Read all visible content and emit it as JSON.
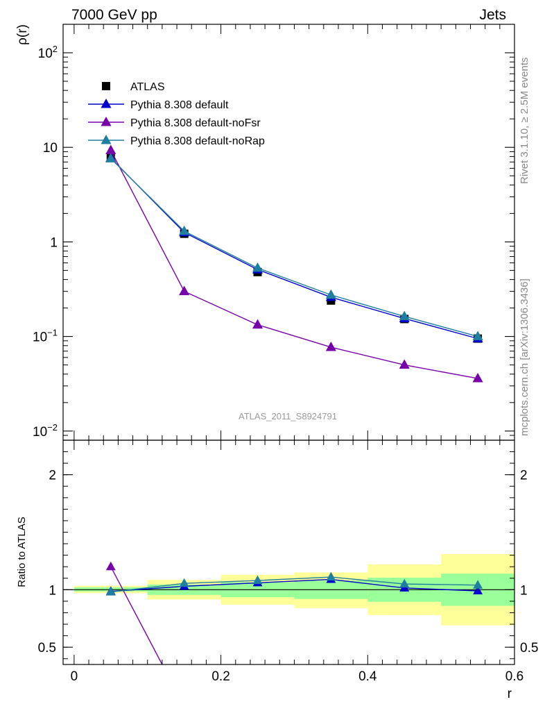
{
  "header": {
    "left": "7000 GeV pp",
    "right": "Jets"
  },
  "side_text": {
    "rivet": "Rivet 3.1.10, ≥ 2.5M events",
    "mcplots": "mcplots.cern.ch [arXiv:1306.3436]"
  },
  "watermark": "ATLAS_2011_S8924791",
  "colors": {
    "atlas": "#000000",
    "default": "#0000cc",
    "noFsr": "#7700aa",
    "noRap": "#1f7fa0",
    "band_inner": "#99ff99",
    "band_outer": "#ffff99"
  },
  "chart_data": [
    {
      "type": "line",
      "panel": "main",
      "ylabel": "ρ(r)",
      "yscale": "log",
      "ylim": [
        0.008,
        200
      ],
      "xlim": [
        -0.015,
        0.6
      ],
      "y_ticks": [
        {
          "value": 100,
          "base": "10",
          "exp": "2"
        },
        {
          "value": 10,
          "base": "10",
          "exp": ""
        },
        {
          "value": 1,
          "base": "1",
          "exp": ""
        },
        {
          "value": 0.1,
          "base": "10",
          "exp": "−1"
        },
        {
          "value": 0.01,
          "base": "10",
          "exp": "−2"
        }
      ],
      "legend_position": "top-left",
      "series": [
        {
          "name": "ATLAS",
          "key": "atlas",
          "marker": "square",
          "x": [
            0.05,
            0.15,
            0.25,
            0.35,
            0.45,
            0.55
          ],
          "y": [
            7.8,
            1.22,
            0.48,
            0.24,
            0.153,
            0.095
          ]
        },
        {
          "name": "Pythia 8.308 default",
          "key": "default",
          "marker": "triangle",
          "x": [
            0.05,
            0.15,
            0.25,
            0.35,
            0.45,
            0.55
          ],
          "y": [
            7.7,
            1.26,
            0.51,
            0.26,
            0.155,
            0.095
          ]
        },
        {
          "name": "Pythia 8.308 default-noFsr",
          "key": "noFsr",
          "marker": "triangle",
          "x": [
            0.05,
            0.15,
            0.25,
            0.35,
            0.45,
            0.55
          ],
          "y": [
            9.3,
            0.3,
            0.133,
            0.077,
            0.05,
            0.036
          ]
        },
        {
          "name": "Pythia 8.308 default-noRap",
          "key": "noRap",
          "marker": "triangle",
          "x": [
            0.05,
            0.15,
            0.25,
            0.35,
            0.45,
            0.55
          ],
          "y": [
            7.6,
            1.3,
            0.53,
            0.275,
            0.163,
            0.1
          ]
        }
      ]
    },
    {
      "type": "line",
      "panel": "ratio",
      "ylabel": "Ratio to ATLAS",
      "xlabel": "r",
      "ylim": [
        0.35,
        2.3
      ],
      "xlim": [
        -0.015,
        0.6
      ],
      "y_ticks": [
        {
          "value": 2,
          "label": "2"
        },
        {
          "value": 1,
          "label": "1"
        },
        {
          "value": 0.5,
          "label": "0.5"
        }
      ],
      "x_ticks": [
        {
          "value": 0,
          "label": "0"
        },
        {
          "value": 0.2,
          "label": "0.2"
        },
        {
          "value": 0.4,
          "label": "0.4"
        },
        {
          "value": 0.6,
          "label": "0.6"
        }
      ],
      "bands": [
        {
          "x0": 0.0,
          "x1": 0.1,
          "inner": [
            0.985,
            1.02
          ],
          "outer": [
            0.97,
            1.035
          ]
        },
        {
          "x0": 0.1,
          "x1": 0.2,
          "inner": [
            0.955,
            1.045
          ],
          "outer": [
            0.915,
            1.085
          ]
        },
        {
          "x0": 0.2,
          "x1": 0.3,
          "inner": [
            0.935,
            1.065
          ],
          "outer": [
            0.87,
            1.13
          ]
        },
        {
          "x0": 0.3,
          "x1": 0.4,
          "inner": [
            0.92,
            1.08
          ],
          "outer": [
            0.84,
            1.15
          ]
        },
        {
          "x0": 0.4,
          "x1": 0.5,
          "inner": [
            0.895,
            1.105
          ],
          "outer": [
            0.78,
            1.22
          ]
        },
        {
          "x0": 0.5,
          "x1": 0.6,
          "inner": [
            0.86,
            1.14
          ],
          "outer": [
            0.69,
            1.31
          ]
        }
      ],
      "series": [
        {
          "name": "Pythia 8.308 default",
          "key": "default",
          "x": [
            0.05,
            0.15,
            0.25,
            0.35,
            0.45,
            0.55
          ],
          "y": [
            0.985,
            1.03,
            1.06,
            1.09,
            1.015,
            0.99
          ]
        },
        {
          "name": "Pythia 8.308 default-noFsr",
          "key": "noFsr",
          "x": [
            0.05,
            0.12
          ],
          "y": [
            1.2,
            0.35
          ]
        },
        {
          "name": "Pythia 8.308 default-noRap",
          "key": "noRap",
          "x": [
            0.05,
            0.15,
            0.25,
            0.35,
            0.45,
            0.55
          ],
          "y": [
            0.98,
            1.055,
            1.08,
            1.11,
            1.05,
            1.04
          ]
        }
      ]
    }
  ]
}
